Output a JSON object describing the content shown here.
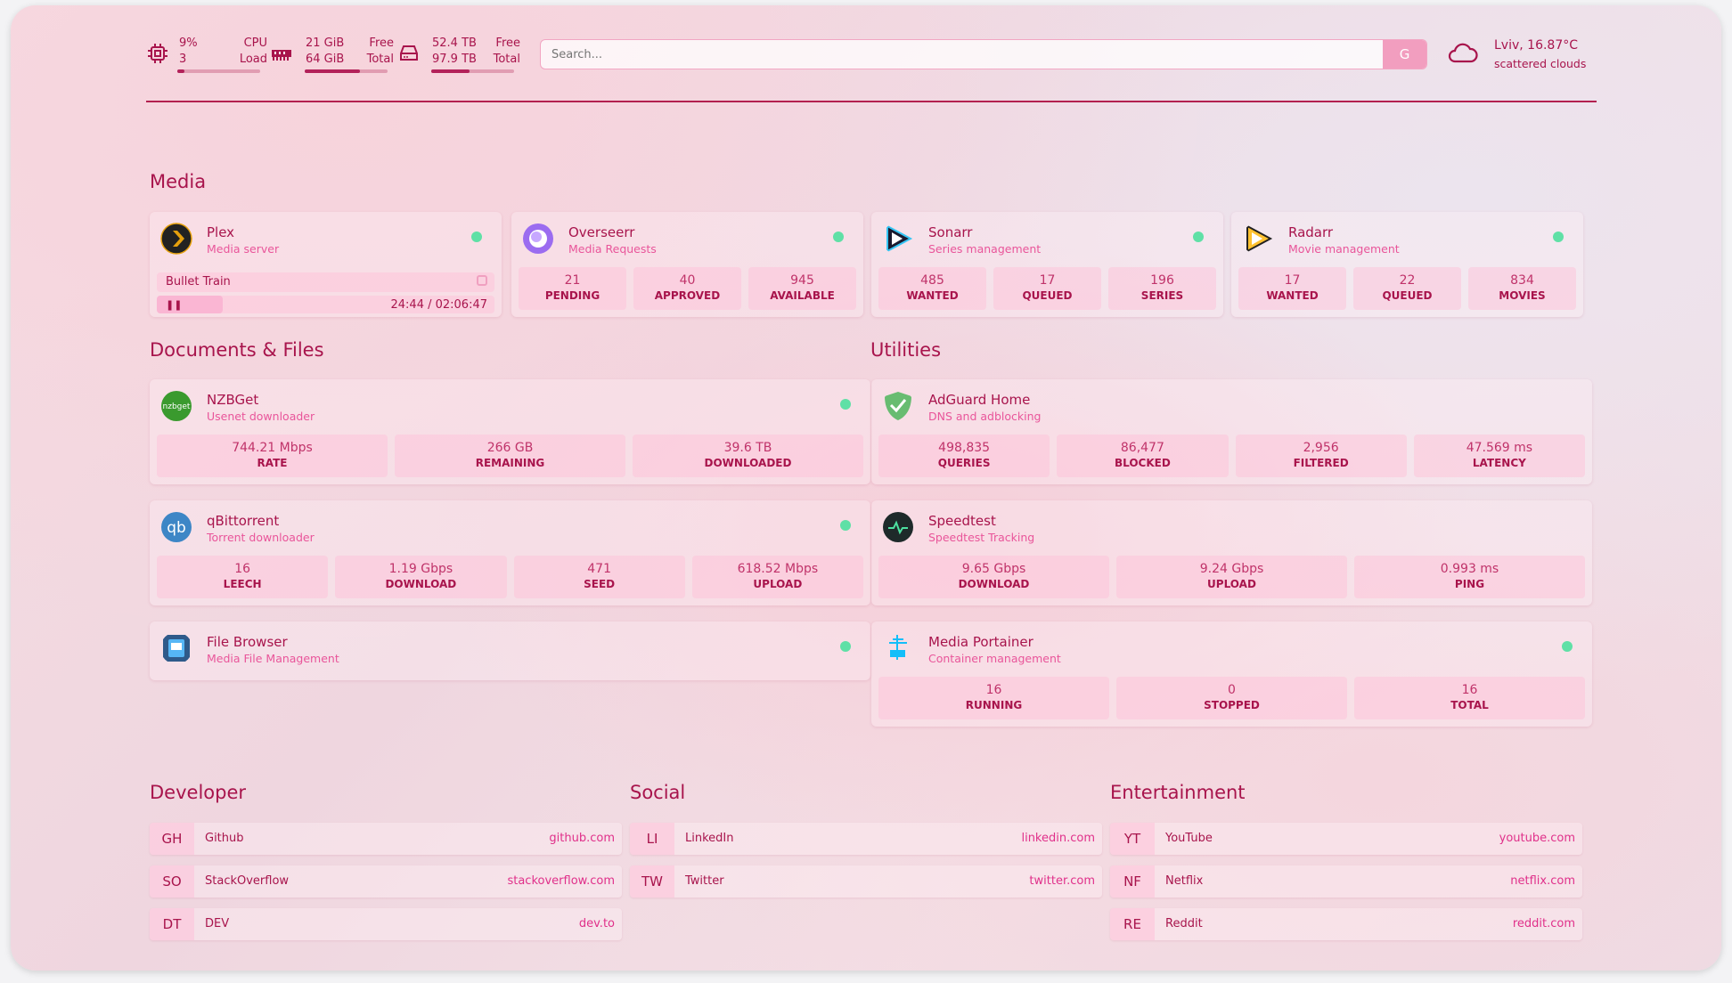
{
  "header": {
    "cpu": {
      "value": "9%",
      "count": "3",
      "label1": "CPU",
      "label2": "Load",
      "percent": 9
    },
    "memory": {
      "free": "21 GiB",
      "total": "64 GiB",
      "label1": "Free",
      "label2": "Total",
      "percent": 67
    },
    "disk": {
      "free": "52.4 TB",
      "total": "97.9 TB",
      "label1": "Free",
      "label2": "Total",
      "percent": 46
    },
    "search": {
      "placeholder": "Search...",
      "button": "G"
    },
    "weather": {
      "location": "Lviv, 16.87°C",
      "condition": "scattered clouds"
    }
  },
  "sections": {
    "media": "Media",
    "docs": "Documents & Files",
    "utilities": "Utilities",
    "developer": "Developer",
    "social": "Social",
    "entertainment": "Entertainment"
  },
  "plex": {
    "name": "Plex",
    "desc": "Media server",
    "title": "Bullet Train",
    "time": "24:44 / 02:06:47",
    "progress_percent": 19.5
  },
  "cards": [
    {
      "name": "Overseerr",
      "desc": "Media Requests",
      "icon": "overseerr-icon",
      "stats": [
        [
          "21",
          "PENDING"
        ],
        [
          "40",
          "APPROVED"
        ],
        [
          "945",
          "AVAILABLE"
        ]
      ]
    },
    {
      "name": "Sonarr",
      "desc": "Series management",
      "icon": "sonarr-icon",
      "stats": [
        [
          "485",
          "WANTED"
        ],
        [
          "17",
          "QUEUED"
        ],
        [
          "196",
          "SERIES"
        ]
      ]
    },
    {
      "name": "Radarr",
      "desc": "Movie management",
      "icon": "radarr-icon",
      "stats": [
        [
          "17",
          "WANTED"
        ],
        [
          "22",
          "QUEUED"
        ],
        [
          "834",
          "MOVIES"
        ]
      ]
    },
    {
      "name": "NZBGet",
      "desc": "Usenet downloader",
      "icon": "nzbget-icon",
      "stats": [
        [
          "744.21 Mbps",
          "RATE"
        ],
        [
          "266 GB",
          "REMAINING"
        ],
        [
          "39.6 TB",
          "DOWNLOADED"
        ]
      ]
    },
    {
      "name": "qBittorrent",
      "desc": "Torrent downloader",
      "icon": "qbittorrent-icon",
      "stats": [
        [
          "16",
          "LEECH"
        ],
        [
          "1.19 Gbps",
          "DOWNLOAD"
        ],
        [
          "471",
          "SEED"
        ],
        [
          "618.52 Mbps",
          "UPLOAD"
        ]
      ]
    },
    {
      "name": "File Browser",
      "desc": "Media File Management",
      "icon": "file-browser-icon",
      "stats": []
    },
    {
      "name": "AdGuard Home",
      "desc": "DNS and adblocking",
      "icon": "adguard-icon",
      "stats": [
        [
          "498,835",
          "QUERIES"
        ],
        [
          "86,477",
          "BLOCKED"
        ],
        [
          "2,956",
          "FILTERED"
        ],
        [
          "47.569 ms",
          "LATENCY"
        ]
      ]
    },
    {
      "name": "Speedtest",
      "desc": "Speedtest Tracking",
      "icon": "speedtest-icon",
      "stats": [
        [
          "9.65 Gbps",
          "DOWNLOAD"
        ],
        [
          "9.24 Gbps",
          "UPLOAD"
        ],
        [
          "0.993 ms",
          "PING"
        ]
      ]
    },
    {
      "name": "Media Portainer",
      "desc": "Container management",
      "icon": "portainer-icon",
      "stats": [
        [
          "16",
          "RUNNING"
        ],
        [
          "0",
          "STOPPED"
        ],
        [
          "16",
          "TOTAL"
        ]
      ]
    }
  ],
  "bookmarks": [
    [
      [
        "GH",
        "Github",
        "github.com"
      ],
      [
        "SO",
        "StackOverflow",
        "stackoverflow.com"
      ],
      [
        "DT",
        "DEV",
        "dev.to"
      ]
    ],
    [
      [
        "LI",
        "LinkedIn",
        "linkedin.com"
      ],
      [
        "TW",
        "Twitter",
        "twitter.com"
      ]
    ],
    [
      [
        "YT",
        "YouTube",
        "youtube.com"
      ],
      [
        "NF",
        "Netflix",
        "netflix.com"
      ],
      [
        "RE",
        "Reddit",
        "reddit.com"
      ]
    ]
  ],
  "colors": {
    "accent": "#a8144c",
    "sub": "#e9559a",
    "status_up": "#5fe0a6"
  }
}
